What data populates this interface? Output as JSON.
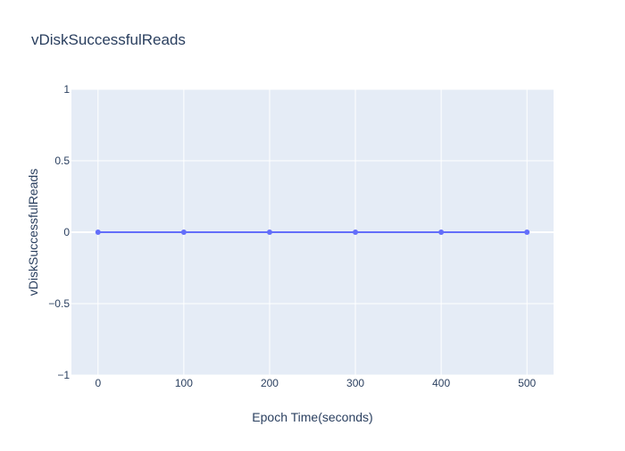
{
  "chart_data": {
    "type": "line",
    "title": "vDiskSuccessfulReads",
    "xlabel": "Epoch Time(seconds)",
    "ylabel": "vDiskSuccessfulReads",
    "xlim": [
      -31,
      531
    ],
    "ylim": [
      -1,
      1
    ],
    "x_ticks": [
      0,
      100,
      200,
      300,
      400,
      500
    ],
    "y_ticks": [
      1,
      0.5,
      0,
      -0.5,
      -1
    ],
    "y_tick_labels": [
      "1",
      "0.5",
      "0",
      "−0.5",
      "−1"
    ],
    "grid": true,
    "series": [
      {
        "x": [
          0,
          100,
          200,
          300,
          400,
          500
        ],
        "y": [
          0,
          0,
          0,
          0,
          0,
          0
        ],
        "color": "#636efa",
        "mode": "lines+markers"
      }
    ]
  },
  "colors": {
    "plot_background": "#e5ecf6",
    "grid": "#ffffff",
    "text": "#2a3f5f",
    "series": "#636efa"
  }
}
